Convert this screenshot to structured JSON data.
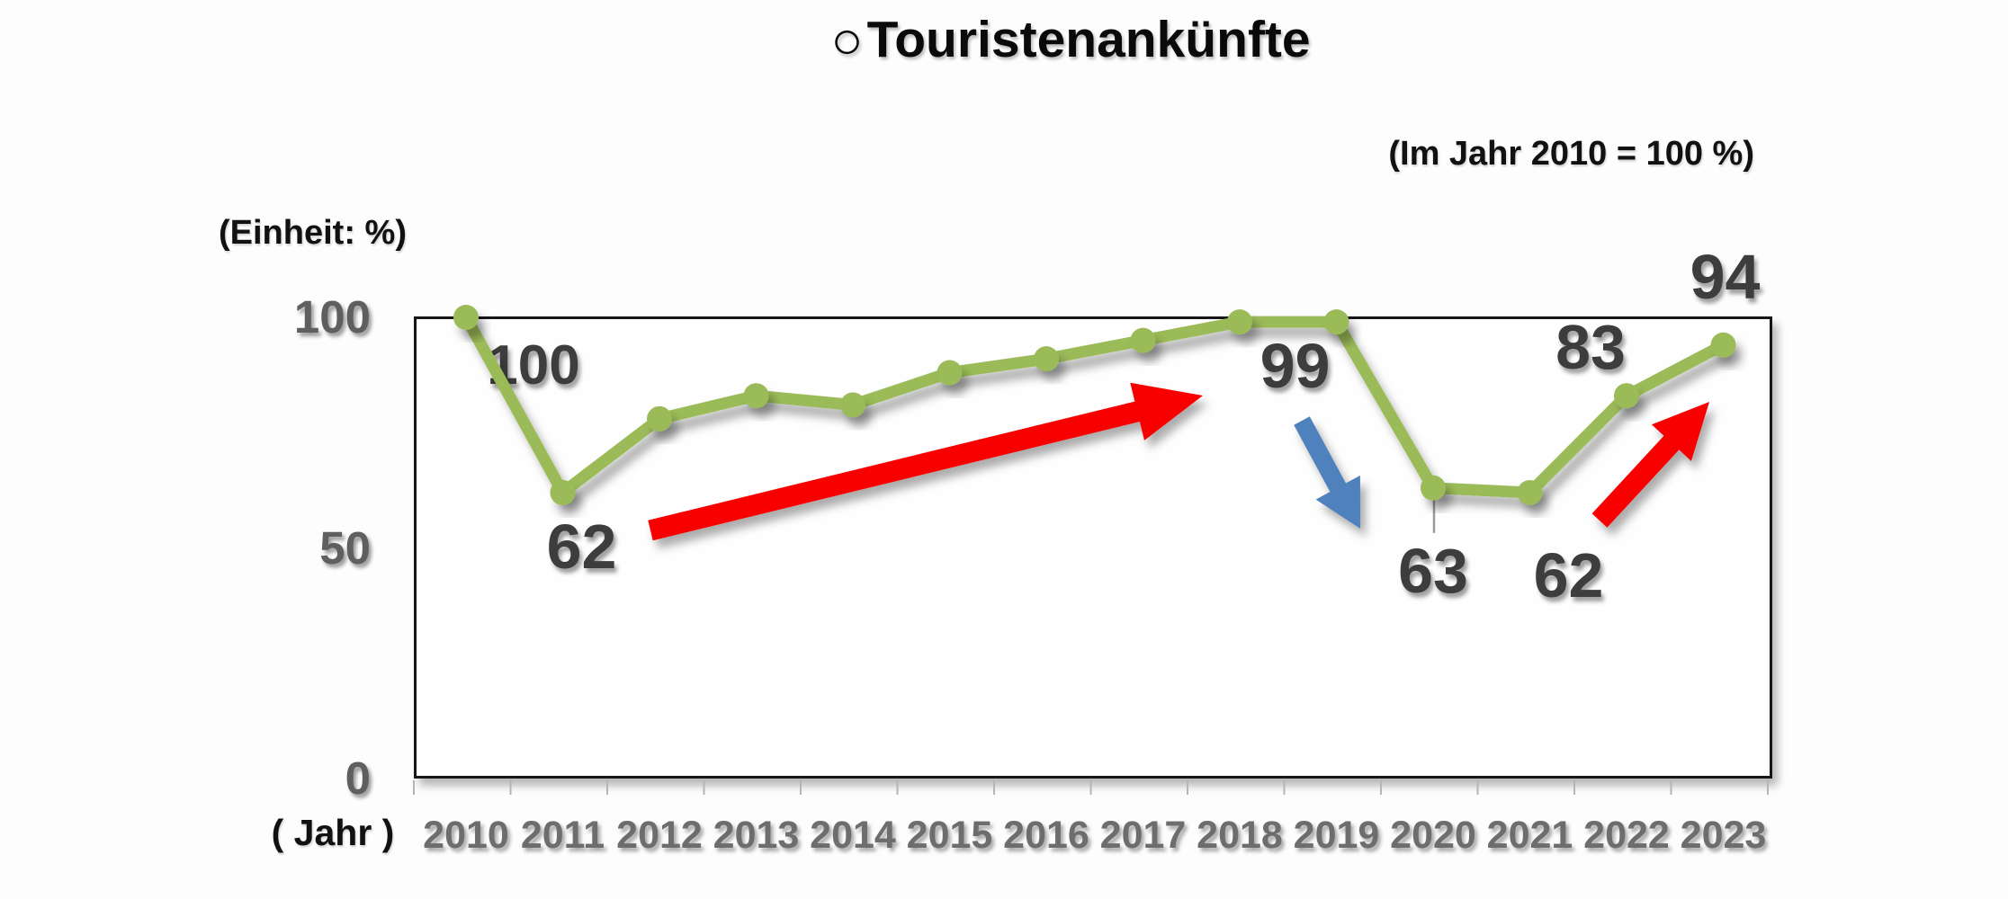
{
  "header": {
    "title_prefix": "○",
    "title": "Touristenankünfte",
    "subtitle": "(Im Jahr 2010 = 100 %)"
  },
  "axes": {
    "unit_label": "(Einheit: %)",
    "x_caption": "( Jahr )"
  },
  "chart_data": {
    "type": "line",
    "title": "Touristenankünfte",
    "subtitle": "Im Jahr 2010 = 100 %",
    "unit": "%",
    "categories": [
      "2010",
      "2011",
      "2012",
      "2013",
      "2014",
      "2015",
      "2016",
      "2017",
      "2018",
      "2019",
      "2020",
      "2021",
      "2022",
      "2023"
    ],
    "values": [
      100,
      62,
      78,
      83,
      81,
      88,
      91,
      95,
      99,
      99,
      63,
      62,
      83,
      94
    ],
    "ylim": [
      0,
      100
    ],
    "yticks": [
      100,
      50,
      0
    ],
    "grid": false,
    "legend": "none",
    "point_labels": [
      {
        "category": "2010",
        "text": "100"
      },
      {
        "category": "2011",
        "text": "62"
      },
      {
        "category": "2019",
        "text": "99"
      },
      {
        "category": "2020",
        "text": "63"
      },
      {
        "category": "2021",
        "text": "62"
      },
      {
        "category": "2022",
        "text": "83"
      },
      {
        "category": "2023",
        "text": "94"
      }
    ],
    "colors": {
      "line": "#9bbb59",
      "marker": "#9bbb59",
      "data_label": "#3d3d3d",
      "axis_tick_label": "#5f5f5f",
      "arrow_up": "#f80000",
      "arrow_down": "#4f81bd"
    },
    "annotations": [
      {
        "name": "uptrend-arrow-2011-2018",
        "type": "arrow",
        "direction": "up-right",
        "color_key": "arrow_up"
      },
      {
        "name": "downtrend-arrow-2019-2020",
        "type": "arrow",
        "direction": "down-right",
        "color_key": "arrow_down"
      },
      {
        "name": "uptrend-arrow-2021-2023",
        "type": "arrow",
        "direction": "up-right",
        "color_key": "arrow_up"
      }
    ]
  }
}
